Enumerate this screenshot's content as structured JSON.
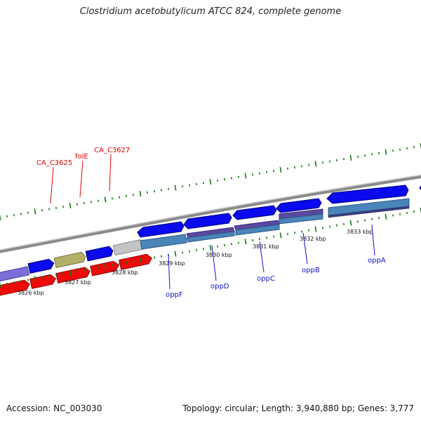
{
  "title": "Clostridium acetobutylicum ATCC 824, complete genome",
  "footer": {
    "accession": "Accession: NC_003030",
    "summary": "Topology: circular; Length: 3,940,880 bp; Genes: 3,777"
  },
  "colors": {
    "backbone": "#8a8a8a",
    "tick": "#1a7a1a",
    "forward_cds": "#0a0aee",
    "reverse_cds": "#ee0a0a",
    "label_forward": "#1010c8",
    "label_reverse": "#e60000",
    "steelblue": "#4a84b8",
    "purple": "#5a48a0",
    "olive": "#b4b06a",
    "grey": "#c4c4c4",
    "lavender": "#7a70d8"
  },
  "kbp_labels": [
    "3826 kbp",
    "3827 kbp",
    "3828 kbp",
    "3829 kbp",
    "3830 kbp",
    "3831 kbp",
    "3832 kbp",
    "3833 kbp"
  ],
  "genes_reverse_labels": [
    "CA_C3625",
    "folE",
    "CA_C3627"
  ],
  "genes_forward_labels": [
    "oppF",
    "oppD",
    "oppC",
    "oppB",
    "oppA"
  ]
}
